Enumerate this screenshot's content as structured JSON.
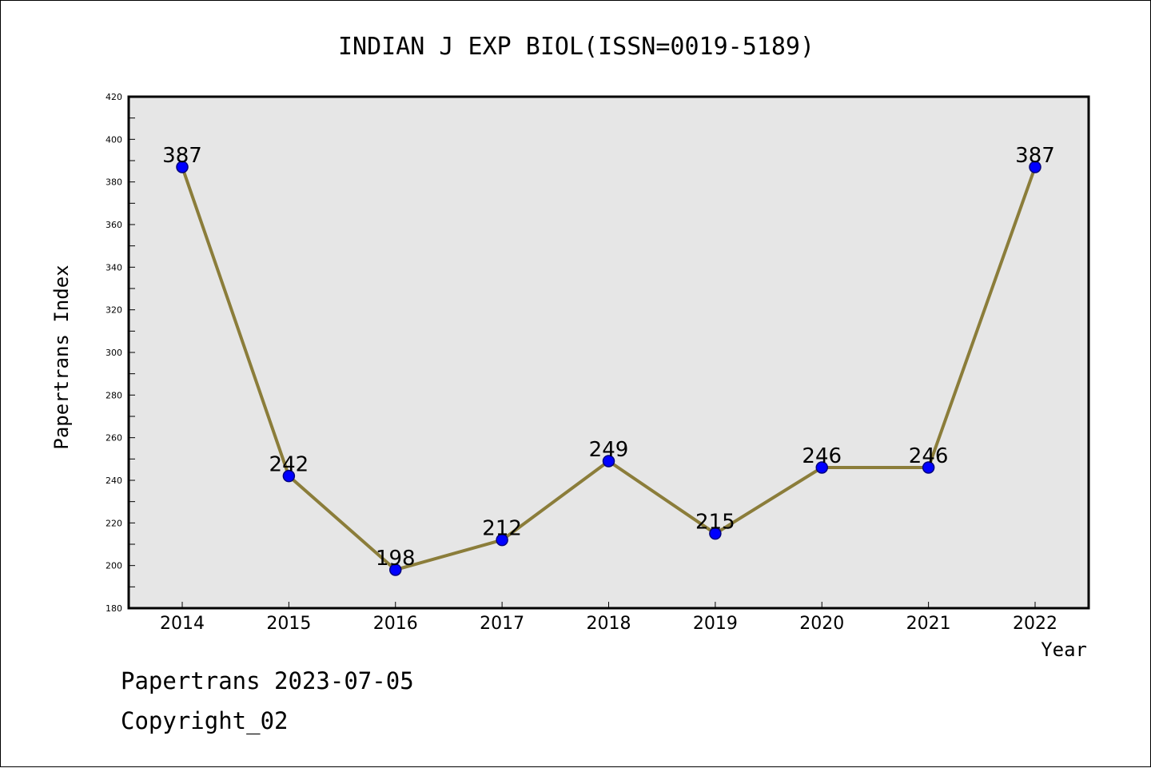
{
  "chart_data": {
    "type": "line",
    "title": "INDIAN J EXP BIOL(ISSN=0019-5189)",
    "xlabel": "Year",
    "ylabel": "Papertrans Index",
    "categories": [
      "2014",
      "2015",
      "2016",
      "2017",
      "2018",
      "2019",
      "2020",
      "2021",
      "2022"
    ],
    "series": [
      {
        "values": [
          387,
          242,
          198,
          212,
          249,
          215,
          246,
          246,
          387
        ],
        "data_labels": [
          "387",
          "242",
          "198",
          "212",
          "249",
          "215",
          "246",
          "246",
          "387"
        ]
      }
    ],
    "ylim": [
      180,
      420
    ],
    "yticks": [
      180,
      200,
      220,
      240,
      260,
      280,
      300,
      320,
      340,
      360,
      380,
      400,
      420
    ],
    "yticks_labels": [
      "180",
      "200",
      "220",
      "240",
      "260",
      "280",
      "300",
      "320",
      "340",
      "360",
      "380",
      "400",
      "420"
    ],
    "grid": false,
    "legend": "none"
  },
  "colors": {
    "plot_background": "#e6e6e6",
    "line": "#8b7d3a",
    "marker_fill": "#0000ff",
    "marker_stroke": "#000080",
    "axis": "#000000"
  },
  "footer": {
    "line1": "Papertrans 2023-07-05",
    "line2": "Copyright_02"
  }
}
